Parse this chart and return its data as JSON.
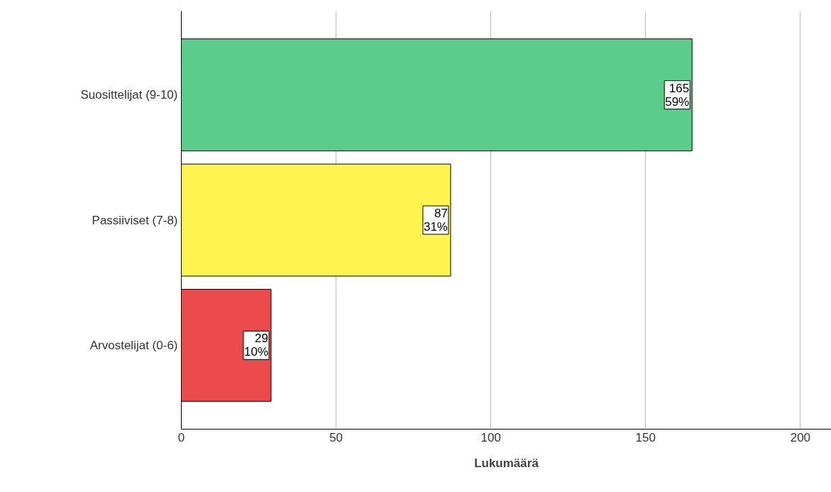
{
  "chart_data": {
    "type": "bar",
    "orientation": "horizontal",
    "xlabel": "Lukumäärä",
    "categories": [
      "Suosittelijat (9-10)",
      "Passiiviset (7-8)",
      "Arvostelijat (0-6)"
    ],
    "values": [
      165,
      87,
      29
    ],
    "colors": [
      "#5ccc8a",
      "#fff44f",
      "#ec4b4b"
    ],
    "value_labels": [
      "165\n59%",
      "87\n31%",
      "29\n10%"
    ],
    "xlim": [
      0,
      210
    ],
    "xticks": [
      0,
      50,
      100,
      150,
      200
    ],
    "grid": "x"
  }
}
